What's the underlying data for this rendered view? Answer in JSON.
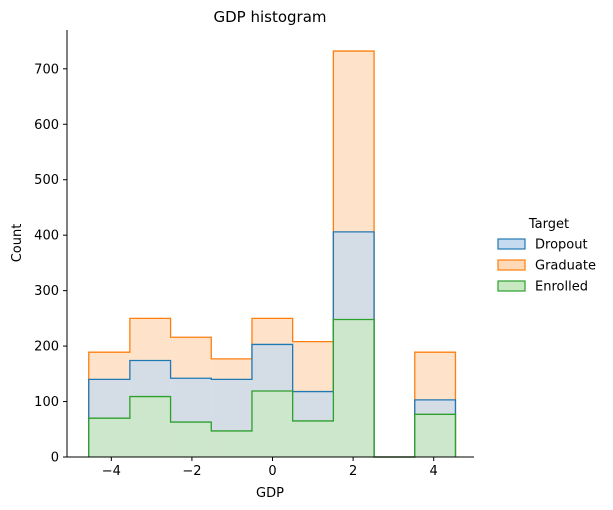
{
  "chart_data": {
    "type": "histogram",
    "title": "GDP histogram",
    "xlabel": "GDP",
    "ylabel": "Count",
    "xlim": [
      -5.1,
      5.0
    ],
    "ylim": [
      0,
      770
    ],
    "xticks": [
      -4,
      -2,
      0,
      2,
      4
    ],
    "xtick_labels": [
      "−4",
      "−2",
      "0",
      "2",
      "4"
    ],
    "yticks": [
      0,
      100,
      200,
      300,
      400,
      500,
      600,
      700
    ],
    "ytick_labels": [
      "0",
      "100",
      "200",
      "300",
      "400",
      "500",
      "600",
      "700"
    ],
    "bin_edges": [
      -4.56,
      -3.54,
      -2.53,
      -1.52,
      -0.51,
      0.5,
      1.51,
      2.52,
      3.53,
      4.54
    ],
    "grid": false,
    "legend_position": "right",
    "legend_title": "Target",
    "series": [
      {
        "name": "Dropout",
        "color": "#1f77b4",
        "fill": "#c6dbef",
        "counts": [
          140,
          174,
          142,
          140,
          203,
          118,
          406,
          0,
          103
        ]
      },
      {
        "name": "Graduate",
        "color": "#ff7f0e",
        "fill": "#fdd9b8",
        "counts": [
          189,
          250,
          216,
          177,
          250,
          208,
          732,
          0,
          189
        ]
      },
      {
        "name": "Enrolled",
        "color": "#2ca02c",
        "fill": "#c9e9c2",
        "counts": [
          70,
          109,
          63,
          47,
          119,
          65,
          248,
          0,
          77
        ]
      }
    ],
    "draw_order": [
      "Graduate",
      "Dropout",
      "Enrolled"
    ]
  }
}
